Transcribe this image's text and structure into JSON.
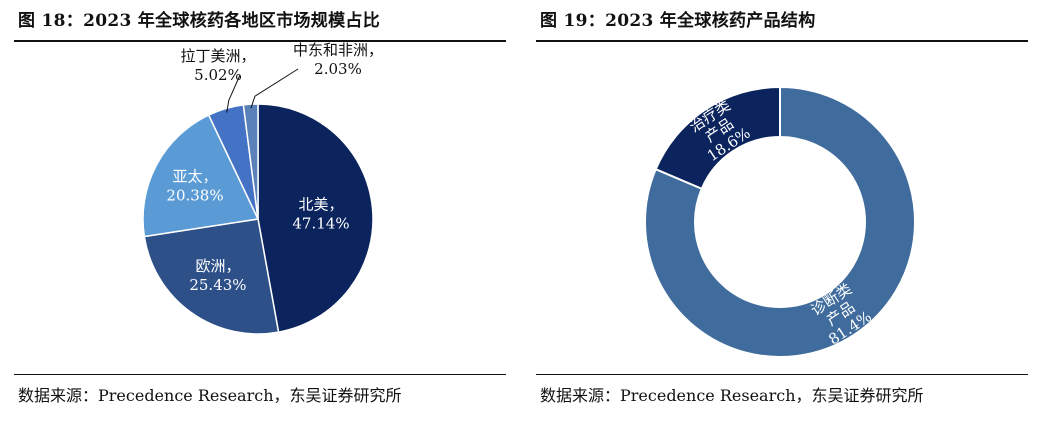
{
  "charts_text": {
    "left": {
      "title": "图 18：2023 年全球核药各地区市场规模占比",
      "source": "数据来源：Precedence Research，东吴证券研究所"
    },
    "right": {
      "title": "图 19：2023 年全球核药产品结构",
      "source": "数据来源：Precedence Research，东吴证券研究所"
    }
  },
  "chart_data": [
    {
      "type": "pie",
      "title": "图 18：2023 年全球核药各地区市场规模占比",
      "unit": "%",
      "slices": [
        {
          "name": "北美",
          "value": 47.14,
          "display": "47.14%",
          "color": "#0b245e"
        },
        {
          "name": "欧洲",
          "value": 25.43,
          "display": "25.43%",
          "color": "#2e5088"
        },
        {
          "name": "亚太",
          "value": 20.38,
          "display": "20.38%",
          "color": "#5b9bd5"
        },
        {
          "name": "拉丁美洲",
          "value": 5.02,
          "display": "5.02%",
          "color": "#4472c4"
        },
        {
          "name": "中东和非洲",
          "value": 2.03,
          "display": "2.03%",
          "color": "#5a82b8"
        }
      ]
    },
    {
      "type": "donut",
      "title": "图 19：2023 年全球核药产品结构",
      "unit": "%",
      "slices": [
        {
          "name": "诊断类产品",
          "value": 81.4,
          "display": "81.4%",
          "color": "#3f6b9d"
        },
        {
          "name": "治疗类产品",
          "value": 18.6,
          "display": "18.6%",
          "color": "#0b245e"
        }
      ]
    }
  ]
}
